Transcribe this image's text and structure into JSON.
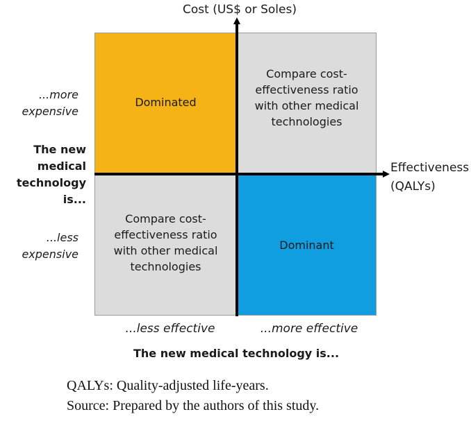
{
  "axes": {
    "y_title": "Cost (US$ or Soles)",
    "x_title_line1": "Effectiveness",
    "x_title_line2": "(QALYs)"
  },
  "quadrants": {
    "top_left": {
      "text": "Dominated",
      "color": "#f5b316"
    },
    "top_right": {
      "text": "Compare cost-effectiveness ratio with other medical technologies",
      "color": "#dcdcdc"
    },
    "bottom_left": {
      "text": "Compare cost-effectiveness ratio with other medical technologies",
      "color": "#dcdcdc"
    },
    "bottom_right": {
      "text": "Dominant",
      "color": "#109ee0"
    }
  },
  "side_labels": {
    "more_expensive": "...more expensive",
    "less_expensive": "...less expensive",
    "subject": "The new medical technology is..."
  },
  "bottom_labels": {
    "less_effective": "...less effective",
    "more_effective": "...more effective",
    "subject": "The new medical technology is..."
  },
  "notes": {
    "abbrev": "QALYs: Quality-adjusted life-years.",
    "source": "Source: Prepared by the authors of this study."
  }
}
